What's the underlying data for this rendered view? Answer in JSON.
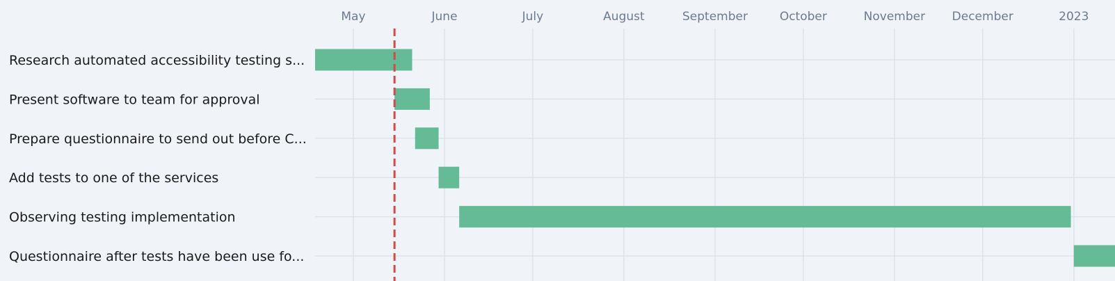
{
  "chart_data": {
    "type": "gantt",
    "axis_ticks": [
      {
        "label": "May",
        "date": "2022-05-01"
      },
      {
        "label": "June",
        "date": "2022-06-01"
      },
      {
        "label": "July",
        "date": "2022-07-01"
      },
      {
        "label": "August",
        "date": "2022-08-01"
      },
      {
        "label": "September",
        "date": "2022-09-01"
      },
      {
        "label": "October",
        "date": "2022-10-01"
      },
      {
        "label": "November",
        "date": "2022-11-01"
      },
      {
        "label": "December",
        "date": "2022-12-01"
      },
      {
        "label": "2023",
        "date": "2023-01-01"
      }
    ],
    "xlim": [
      "2022-04-18",
      "2023-01-15"
    ],
    "today": "2022-05-15",
    "tasks": [
      {
        "label": "Research automated accessibility testing s...",
        "start": "2022-04-18",
        "end": "2022-05-21"
      },
      {
        "label": "Present software to team for approval",
        "start": "2022-05-15",
        "end": "2022-05-27"
      },
      {
        "label": "Prepare questionnaire to send out before C...",
        "start": "2022-05-22",
        "end": "2022-05-30"
      },
      {
        "label": "Add tests to one of the services",
        "start": "2022-05-30",
        "end": "2022-06-06"
      },
      {
        "label": "Observing testing implementation",
        "start": "2022-06-06",
        "end": "2022-12-31"
      },
      {
        "label": "Questionnaire after tests have been use fo...",
        "start": "2023-01-01",
        "end": "2023-01-15"
      }
    ],
    "colors": {
      "bar": "#65bb95",
      "today_line": "#d34a4a",
      "grid": "#dde3ea",
      "axis_text": "#6b7a90",
      "label_text": "#1a1a1a",
      "background": "#f0f4f9"
    },
    "grid": true
  }
}
